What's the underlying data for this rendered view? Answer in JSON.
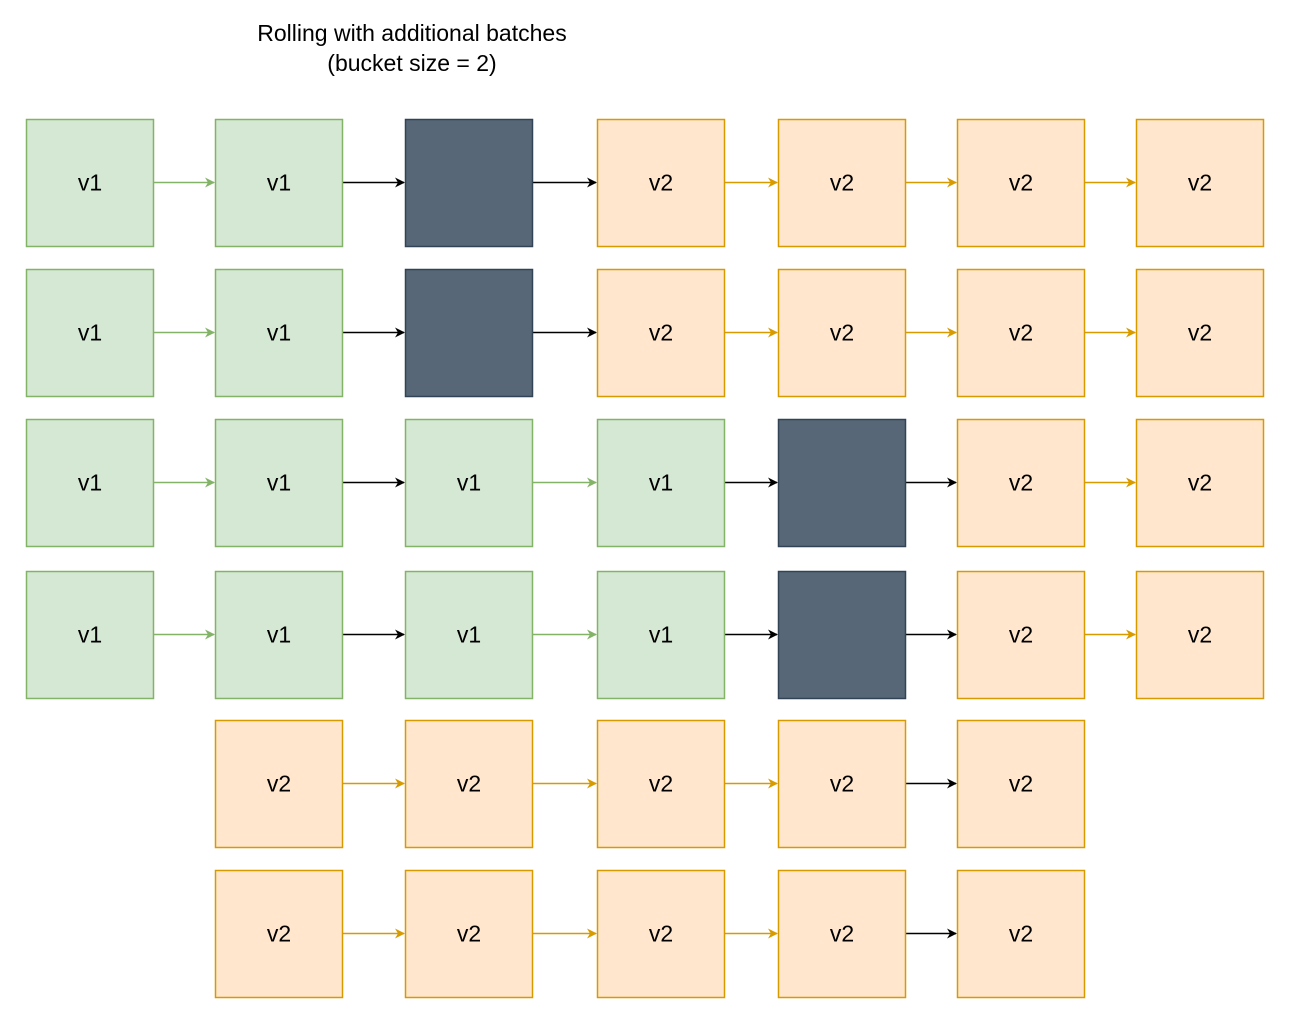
{
  "title": {
    "line1": "Rolling with additional batches",
    "line2": "(bucket size = 2)"
  },
  "colors": {
    "v1_fill": "#d5e8d4",
    "v1_stroke": "#82b366",
    "v2_fill": "#ffe6cc",
    "v2_stroke": "#d79b00",
    "dark_fill": "#576777",
    "dark_stroke": "#314354",
    "arrow_green": "#82b366",
    "arrow_orange": "#d79b00",
    "arrow_black": "#000000"
  },
  "rows": [
    {
      "nodes": [
        {
          "type": "v1",
          "label": "v1"
        },
        {
          "type": "v1",
          "label": "v1"
        },
        {
          "type": "dark",
          "label": ""
        },
        {
          "type": "v2",
          "label": "v2"
        },
        {
          "type": "v2",
          "label": "v2"
        },
        {
          "type": "v2",
          "label": "v2"
        },
        {
          "type": "v2",
          "label": "v2"
        }
      ],
      "arrows": [
        "green",
        "black",
        "black",
        "orange",
        "orange",
        "orange"
      ]
    },
    {
      "nodes": [
        {
          "type": "v1",
          "label": "v1"
        },
        {
          "type": "v1",
          "label": "v1"
        },
        {
          "type": "dark",
          "label": ""
        },
        {
          "type": "v2",
          "label": "v2"
        },
        {
          "type": "v2",
          "label": "v2"
        },
        {
          "type": "v2",
          "label": "v2"
        },
        {
          "type": "v2",
          "label": "v2"
        }
      ],
      "arrows": [
        "green",
        "black",
        "black",
        "orange",
        "orange",
        "orange"
      ]
    },
    {
      "nodes": [
        {
          "type": "v1",
          "label": "v1"
        },
        {
          "type": "v1",
          "label": "v1"
        },
        {
          "type": "v1",
          "label": "v1"
        },
        {
          "type": "v1",
          "label": "v1"
        },
        {
          "type": "dark",
          "label": ""
        },
        {
          "type": "v2",
          "label": "v2"
        },
        {
          "type": "v2",
          "label": "v2"
        }
      ],
      "arrows": [
        "green",
        "black",
        "green",
        "black",
        "black",
        "orange"
      ]
    },
    {
      "nodes": [
        {
          "type": "v1",
          "label": "v1"
        },
        {
          "type": "v1",
          "label": "v1"
        },
        {
          "type": "v1",
          "label": "v1"
        },
        {
          "type": "v1",
          "label": "v1"
        },
        {
          "type": "dark",
          "label": ""
        },
        {
          "type": "v2",
          "label": "v2"
        },
        {
          "type": "v2",
          "label": "v2"
        }
      ],
      "arrows": [
        "green",
        "black",
        "green",
        "black",
        "black",
        "orange"
      ]
    },
    {
      "nodes": [
        {
          "type": "v2",
          "label": "v2"
        },
        {
          "type": "v2",
          "label": "v2"
        },
        {
          "type": "v2",
          "label": "v2"
        },
        {
          "type": "v2",
          "label": "v2"
        },
        {
          "type": "v2",
          "label": "v2"
        }
      ],
      "arrows": [
        "orange",
        "orange",
        "orange",
        "black"
      ]
    },
    {
      "nodes": [
        {
          "type": "v2",
          "label": "v2"
        },
        {
          "type": "v2",
          "label": "v2"
        },
        {
          "type": "v2",
          "label": "v2"
        },
        {
          "type": "v2",
          "label": "v2"
        },
        {
          "type": "v2",
          "label": "v2"
        }
      ],
      "arrows": [
        "orange",
        "orange",
        "orange",
        "black"
      ]
    }
  ]
}
